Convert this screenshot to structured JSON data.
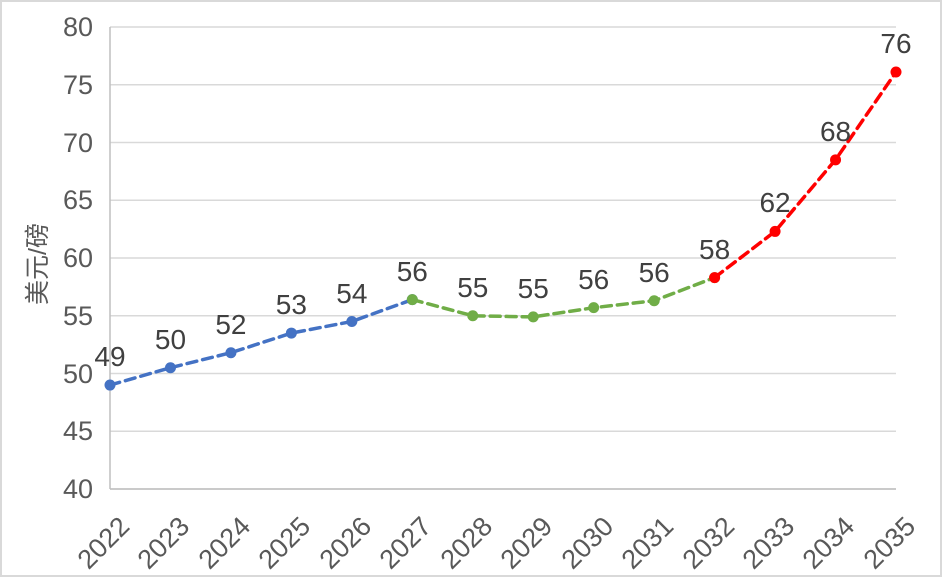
{
  "chart_data": {
    "type": "line",
    "title": "",
    "xlabel": "",
    "ylabel": "美元/磅",
    "categories": [
      "2022",
      "2023",
      "2024",
      "2025",
      "2026",
      "2027",
      "2028",
      "2029",
      "2030",
      "2031",
      "2032",
      "2033",
      "2034",
      "2035"
    ],
    "point_labels": [
      "49",
      "50",
      "52",
      "53",
      "54",
      "56",
      "55",
      "55",
      "56",
      "56",
      "58",
      "62",
      "68",
      "76"
    ],
    "ylim": [
      40,
      80
    ],
    "y_ticks": [
      40,
      45,
      50,
      55,
      60,
      65,
      70,
      75,
      80
    ],
    "grid": true,
    "legend": "none",
    "line_style": "dashed",
    "marker": "circle",
    "series": [
      {
        "name": "blue-segment",
        "color": "#4472C4",
        "years": [
          "2022",
          "2023",
          "2024",
          "2025",
          "2026",
          "2027"
        ],
        "values": [
          49.0,
          50.5,
          51.8,
          53.5,
          54.5,
          56.4
        ]
      },
      {
        "name": "green-segment",
        "color": "#70AD47",
        "years": [
          "2027",
          "2028",
          "2029",
          "2030",
          "2031",
          "2032"
        ],
        "values": [
          56.4,
          55.0,
          54.9,
          55.7,
          56.3,
          58.3
        ]
      },
      {
        "name": "red-segment",
        "color": "#FF0000",
        "years": [
          "2032",
          "2033",
          "2034",
          "2035"
        ],
        "values": [
          58.3,
          62.3,
          68.5,
          76.1
        ]
      }
    ],
    "colors": {
      "background": "#FFFFFF",
      "border": "#D9D9D9",
      "gridline": "#D9D9D9",
      "axis": "#BFBFBF",
      "tick_label": "#595959",
      "data_label": "#404040"
    }
  }
}
